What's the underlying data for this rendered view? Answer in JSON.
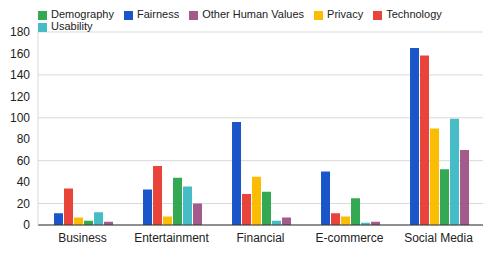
{
  "chart_data": {
    "type": "bar",
    "categories": [
      "Business",
      "Entertainment",
      "Financial",
      "E-commerce",
      "Social Media"
    ],
    "series": [
      {
        "name": "Fairness",
        "color": "#1a56c9",
        "values": [
          11,
          33,
          96,
          50,
          165
        ]
      },
      {
        "name": "Technology",
        "color": "#e8443a",
        "values": [
          34,
          55,
          29,
          11,
          158
        ]
      },
      {
        "name": "Privacy",
        "color": "#fbbc04",
        "values": [
          7,
          8,
          45,
          8,
          90
        ]
      },
      {
        "name": "Demography",
        "color": "#34a853",
        "values": [
          4,
          44,
          31,
          25,
          52
        ]
      },
      {
        "name": "Usability",
        "color": "#46bdc6",
        "values": [
          12,
          36,
          4,
          2,
          99
        ]
      },
      {
        "name": "Other Human Values",
        "color": "#a25b8a",
        "values": [
          3,
          20,
          7,
          3,
          70
        ]
      }
    ],
    "ylim": [
      0,
      180
    ],
    "yticks": [
      0,
      20,
      40,
      60,
      80,
      100,
      120,
      140,
      160,
      180
    ],
    "grid": true,
    "legend": "top"
  }
}
